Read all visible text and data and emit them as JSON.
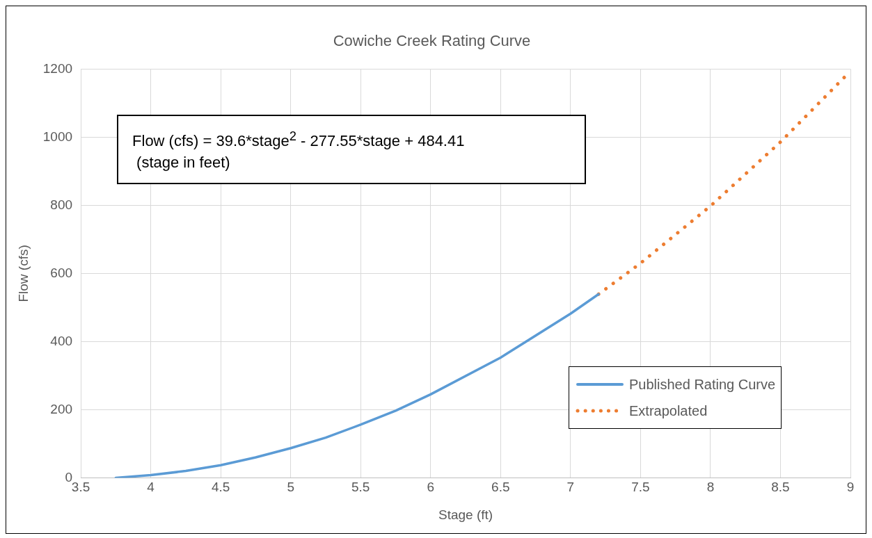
{
  "chart_data": {
    "type": "line",
    "title": "Cowiche Creek Rating Curve",
    "xlabel": "Stage (ft)",
    "ylabel": "Flow (cfs)",
    "annotations": [
      "Flow (cfs) = 39.6*stage$^{2}$ - 277.55*stage + 484.41",
      "(stage in feet)"
    ],
    "xlim": [
      3.5,
      9
    ],
    "xticks": [
      {
        "value": 3.5,
        "label": "3.5"
      },
      4,
      {
        "value": 4.5,
        "label": "4.5"
      },
      5,
      {
        "value": 5.5,
        "label": "5.5"
      },
      6,
      {
        "value": 6.5,
        "label": "6.5"
      },
      7,
      {
        "value": 7.5,
        "label": "7.5"
      },
      8,
      {
        "value": 8.5,
        "label": "8.5"
      },
      9
    ],
    "ylim": [
      0,
      1200
    ],
    "yticks": [
      0,
      200,
      400,
      600,
      800,
      1000,
      1200
    ],
    "grid": true,
    "legend": "bottom right",
    "marker": "none",
    "series": [
      {
        "name": "Published Rating Curve",
        "color": "#5b9bd5",
        "line_style": "solid",
        "x": [
          3.75,
          4,
          4.25,
          4.5,
          4.75,
          5,
          5.25,
          5.5,
          5.75,
          6,
          6.5,
          7,
          7.2
        ],
        "values": [
          0,
          8,
          20,
          37,
          60,
          87,
          118,
          156,
          197,
          245,
          353,
          482,
          539
        ]
      },
      {
        "name": "Extrapolated",
        "color": "#ed7d31",
        "line_style": "dotted",
        "x": [
          7.2,
          7.5,
          8,
          8.5,
          9
        ],
        "values": [
          539,
          630,
          798,
          986,
          1194
        ]
      }
    ]
  }
}
